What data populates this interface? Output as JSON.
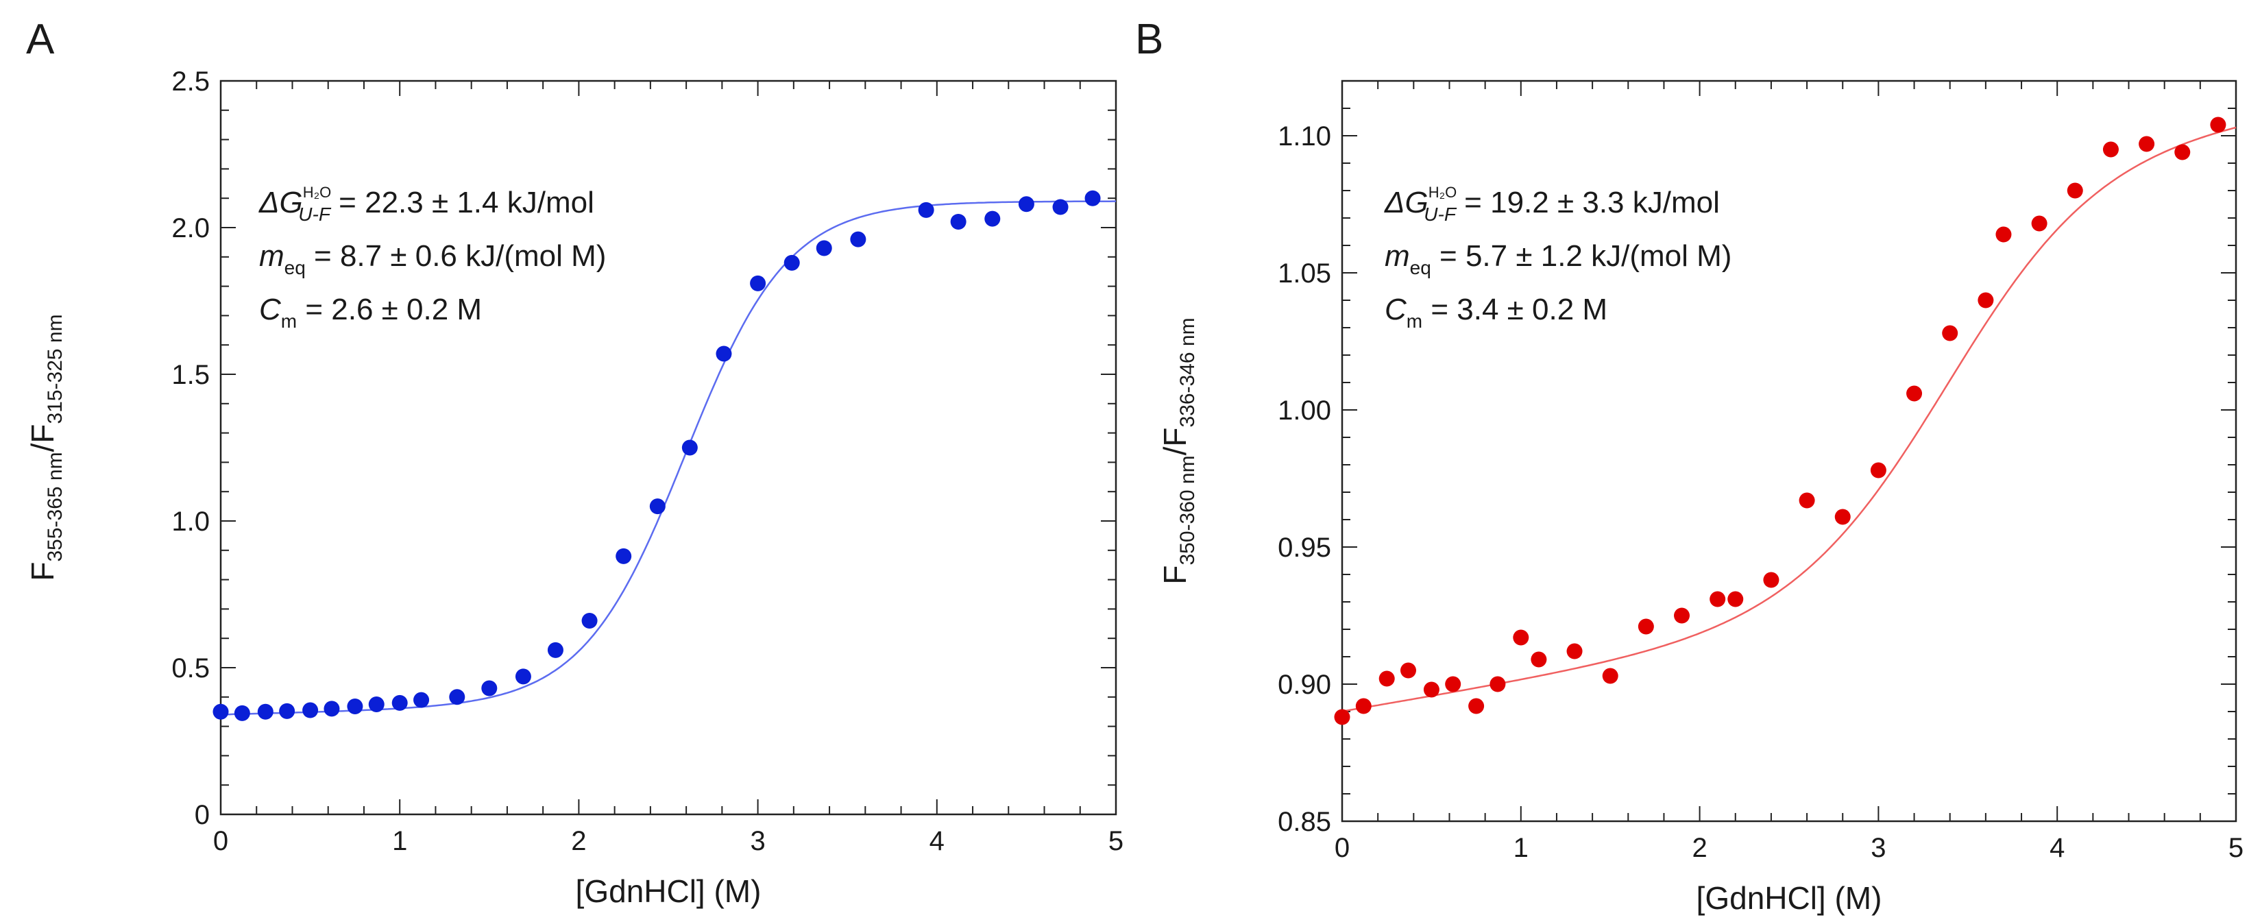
{
  "chart_data": [
    {
      "type": "scatter",
      "panel_label": "A",
      "xlabel": "[GdnHCl] (M)",
      "ylabel_main_1": "F",
      "ylabel_sub_1": "355-365 nm",
      "ylabel_main_2": "/F",
      "ylabel_sub_2": "315-325 nm",
      "xlim": [
        0,
        5
      ],
      "ylim": [
        0,
        2.5
      ],
      "xticks": [
        0,
        1,
        2,
        3,
        4,
        5
      ],
      "xtick_labels": [
        "0",
        "1",
        "2",
        "3",
        "4",
        "5"
      ],
      "yticks": [
        0,
        0.5,
        1.0,
        1.5,
        2.0,
        2.5
      ],
      "ytick_labels": [
        "0",
        "0.5",
        "1.0",
        "1.5",
        "2.0",
        "2.5"
      ],
      "point_color": "#0a1fd6",
      "fit_color": "#5c6cf0",
      "fit": {
        "model": "two-state",
        "yF": 0.34,
        "mF": 0.015,
        "yU": 2.09,
        "mU": 0.0,
        "Cm": 2.6,
        "m_kJ": 8.7,
        "RT_kJ": 2.479
      },
      "points": [
        {
          "x": 0.0,
          "y": 0.35
        },
        {
          "x": 0.12,
          "y": 0.345
        },
        {
          "x": 0.25,
          "y": 0.35
        },
        {
          "x": 0.37,
          "y": 0.352
        },
        {
          "x": 0.5,
          "y": 0.355
        },
        {
          "x": 0.62,
          "y": 0.36
        },
        {
          "x": 0.75,
          "y": 0.368
        },
        {
          "x": 0.87,
          "y": 0.375
        },
        {
          "x": 1.0,
          "y": 0.38
        },
        {
          "x": 1.12,
          "y": 0.39
        },
        {
          "x": 1.32,
          "y": 0.4
        },
        {
          "x": 1.5,
          "y": 0.43
        },
        {
          "x": 1.69,
          "y": 0.47
        },
        {
          "x": 1.87,
          "y": 0.56
        },
        {
          "x": 2.06,
          "y": 0.66
        },
        {
          "x": 2.25,
          "y": 0.88
        },
        {
          "x": 2.44,
          "y": 1.05
        },
        {
          "x": 2.62,
          "y": 1.25
        },
        {
          "x": 2.81,
          "y": 1.57
        },
        {
          "x": 3.0,
          "y": 1.81
        },
        {
          "x": 3.19,
          "y": 1.88
        },
        {
          "x": 3.37,
          "y": 1.93
        },
        {
          "x": 3.56,
          "y": 1.96
        },
        {
          "x": 3.94,
          "y": 2.06
        },
        {
          "x": 4.12,
          "y": 2.02
        },
        {
          "x": 4.31,
          "y": 2.03
        },
        {
          "x": 4.5,
          "y": 2.08
        },
        {
          "x": 4.69,
          "y": 2.07
        },
        {
          "x": 4.87,
          "y": 2.1
        }
      ],
      "annotation": {
        "dg_symbol": "ΔG",
        "dg_sub": "U-F",
        "dg_sup": "H₂O",
        "dg_value": "= 22.3 ± 1.4 kJ/mol",
        "m_symbol": "m",
        "m_sub": "eq",
        "m_value": "= 8.7 ± 0.6 kJ/(mol M)",
        "c_symbol": "C",
        "c_sub": "m",
        "c_value": "= 2.6 ± 0.2 M"
      }
    },
    {
      "type": "scatter",
      "panel_label": "B",
      "xlabel": "[GdnHCl] (M)",
      "ylabel_main_1": "F",
      "ylabel_sub_1": "350-360 nm",
      "ylabel_main_2": "/F",
      "ylabel_sub_2": "336-346 nm",
      "xlim": [
        0,
        5
      ],
      "ylim": [
        0.85,
        1.12
      ],
      "xticks": [
        0,
        1,
        2,
        3,
        4,
        5
      ],
      "xtick_labels": [
        "0",
        "1",
        "2",
        "3",
        "4",
        "5"
      ],
      "yticks": [
        0.85,
        0.9,
        0.95,
        1.0,
        1.05,
        1.1
      ],
      "ytick_labels": [
        "0.85",
        "0.90",
        "0.95",
        "1.00",
        "1.05",
        "1.10"
      ],
      "point_color": "#e00000",
      "fit_color": "#f06060",
      "fit": {
        "model": "two-state",
        "yF": 0.89,
        "mF": 0.011,
        "yU": 1.067,
        "mU": 0.008,
        "Cm": 3.4,
        "m_kJ": 5.7,
        "RT_kJ": 2.479
      },
      "points": [
        {
          "x": 0.0,
          "y": 0.888
        },
        {
          "x": 0.12,
          "y": 0.892
        },
        {
          "x": 0.25,
          "y": 0.902
        },
        {
          "x": 0.37,
          "y": 0.905
        },
        {
          "x": 0.5,
          "y": 0.898
        },
        {
          "x": 0.62,
          "y": 0.9
        },
        {
          "x": 0.75,
          "y": 0.892
        },
        {
          "x": 0.87,
          "y": 0.9
        },
        {
          "x": 1.0,
          "y": 0.917
        },
        {
          "x": 1.1,
          "y": 0.909
        },
        {
          "x": 1.3,
          "y": 0.912
        },
        {
          "x": 1.5,
          "y": 0.903
        },
        {
          "x": 1.7,
          "y": 0.921
        },
        {
          "x": 1.9,
          "y": 0.925
        },
        {
          "x": 2.1,
          "y": 0.931
        },
        {
          "x": 2.2,
          "y": 0.931
        },
        {
          "x": 2.4,
          "y": 0.938
        },
        {
          "x": 2.6,
          "y": 0.967
        },
        {
          "x": 2.8,
          "y": 0.961
        },
        {
          "x": 3.0,
          "y": 0.978
        },
        {
          "x": 3.2,
          "y": 1.006
        },
        {
          "x": 3.4,
          "y": 1.028
        },
        {
          "x": 3.6,
          "y": 1.04
        },
        {
          "x": 3.7,
          "y": 1.064
        },
        {
          "x": 3.9,
          "y": 1.068
        },
        {
          "x": 4.1,
          "y": 1.08
        },
        {
          "x": 4.3,
          "y": 1.095
        },
        {
          "x": 4.5,
          "y": 1.097
        },
        {
          "x": 4.7,
          "y": 1.094
        },
        {
          "x": 4.9,
          "y": 1.104
        }
      ],
      "annotation": {
        "dg_symbol": "ΔG",
        "dg_sub": "U-F",
        "dg_sup": "H₂O",
        "dg_value": "= 19.2 ± 3.3 kJ/mol",
        "m_symbol": "m",
        "m_sub": "eq",
        "m_value": "= 5.7 ± 1.2 kJ/(mol M)",
        "c_symbol": "C",
        "c_sub": "m",
        "c_value": "= 3.4 ± 0.2 M"
      }
    }
  ]
}
